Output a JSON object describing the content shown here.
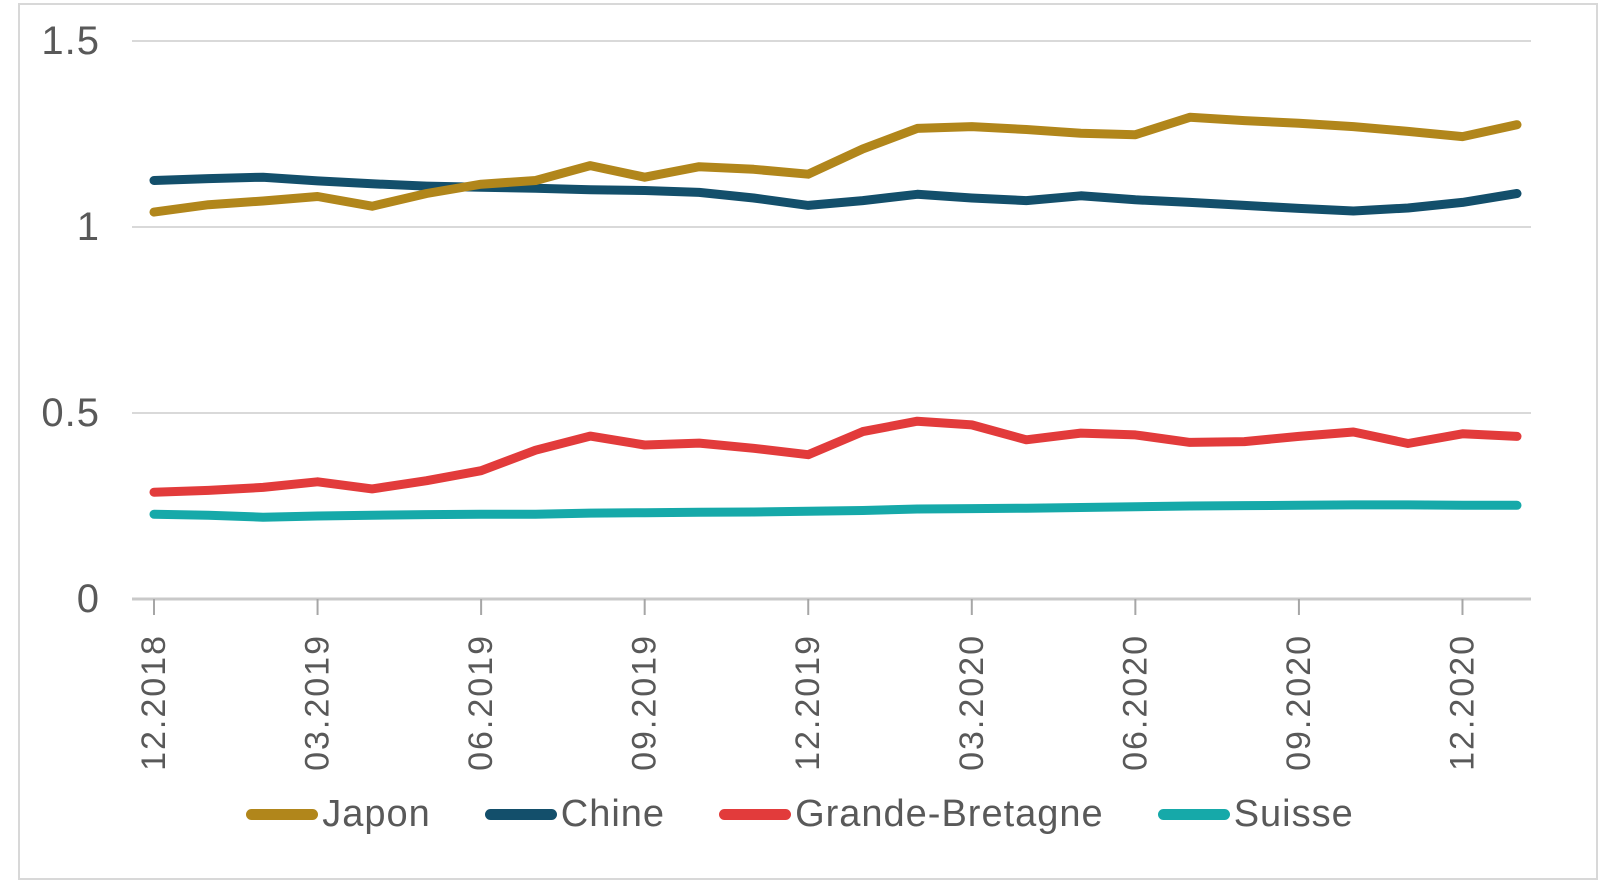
{
  "chart_data": {
    "type": "line",
    "title": "",
    "xlabel": "",
    "ylabel": "",
    "grid": true,
    "legend_position": "bottom",
    "ylim": [
      0,
      1.5
    ],
    "y_ticks": [
      {
        "value": 1.5,
        "label": "1.5"
      },
      {
        "value": 1.0,
        "label": "1"
      },
      {
        "value": 0.5,
        "label": "0.5"
      },
      {
        "value": 0.0,
        "label": "0"
      }
    ],
    "x": [
      "12.2018",
      "01.2019",
      "02.2019",
      "03.2019",
      "04.2019",
      "05.2019",
      "06.2019",
      "07.2019",
      "08.2019",
      "09.2019",
      "10.2019",
      "11.2019",
      "12.2019",
      "01.2020",
      "02.2020",
      "03.2020",
      "04.2020",
      "05.2020",
      "06.2020",
      "07.2020",
      "08.2020",
      "09.2020",
      "10.2020",
      "11.2020",
      "12.2020",
      "01.2021"
    ],
    "x_tick_labels": [
      "12.2018",
      "03.2019",
      "06.2019",
      "09.2019",
      "12.2019",
      "03.2020",
      "06.2020",
      "09.2020",
      "12.2020"
    ],
    "series": [
      {
        "name": "Japon",
        "color": "#B1861B",
        "values": [
          1.04,
          1.06,
          1.07,
          1.082,
          1.056,
          1.09,
          1.115,
          1.125,
          1.165,
          1.134,
          1.162,
          1.155,
          1.142,
          1.21,
          1.265,
          1.27,
          1.262,
          1.252,
          1.248,
          1.295,
          1.286,
          1.279,
          1.27,
          1.257,
          1.243,
          1.275
        ]
      },
      {
        "name": "Chine",
        "color": "#134F6B",
        "values": [
          1.125,
          1.13,
          1.134,
          1.124,
          1.116,
          1.11,
          1.107,
          1.104,
          1.1,
          1.098,
          1.093,
          1.078,
          1.058,
          1.071,
          1.088,
          1.078,
          1.071,
          1.084,
          1.073,
          1.066,
          1.058,
          1.05,
          1.043,
          1.051,
          1.066,
          1.09
        ]
      },
      {
        "name": "Grande-Bretagne",
        "color": "#E23B3B",
        "values": [
          0.287,
          0.292,
          0.3,
          0.315,
          0.296,
          0.318,
          0.345,
          0.4,
          0.438,
          0.414,
          0.419,
          0.405,
          0.388,
          0.45,
          0.478,
          0.468,
          0.428,
          0.446,
          0.441,
          0.421,
          0.423,
          0.437,
          0.449,
          0.418,
          0.444,
          0.437
        ]
      },
      {
        "name": "Suisse",
        "color": "#16A9A9",
        "values": [
          0.228,
          0.225,
          0.22,
          0.223,
          0.225,
          0.227,
          0.228,
          0.228,
          0.231,
          0.232,
          0.233,
          0.234,
          0.236,
          0.238,
          0.242,
          0.243,
          0.244,
          0.246,
          0.248,
          0.25,
          0.251,
          0.252,
          0.253,
          0.253,
          0.252,
          0.252
        ]
      }
    ]
  },
  "styles": {
    "text_color": "#595959",
    "grid_color": "#D9D9D9",
    "axis_line_color": "#C9C9C9",
    "tick_color": "#A6A6A6",
    "panel_border_color": "#D8D8D8",
    "background": "#FFFFFF"
  }
}
